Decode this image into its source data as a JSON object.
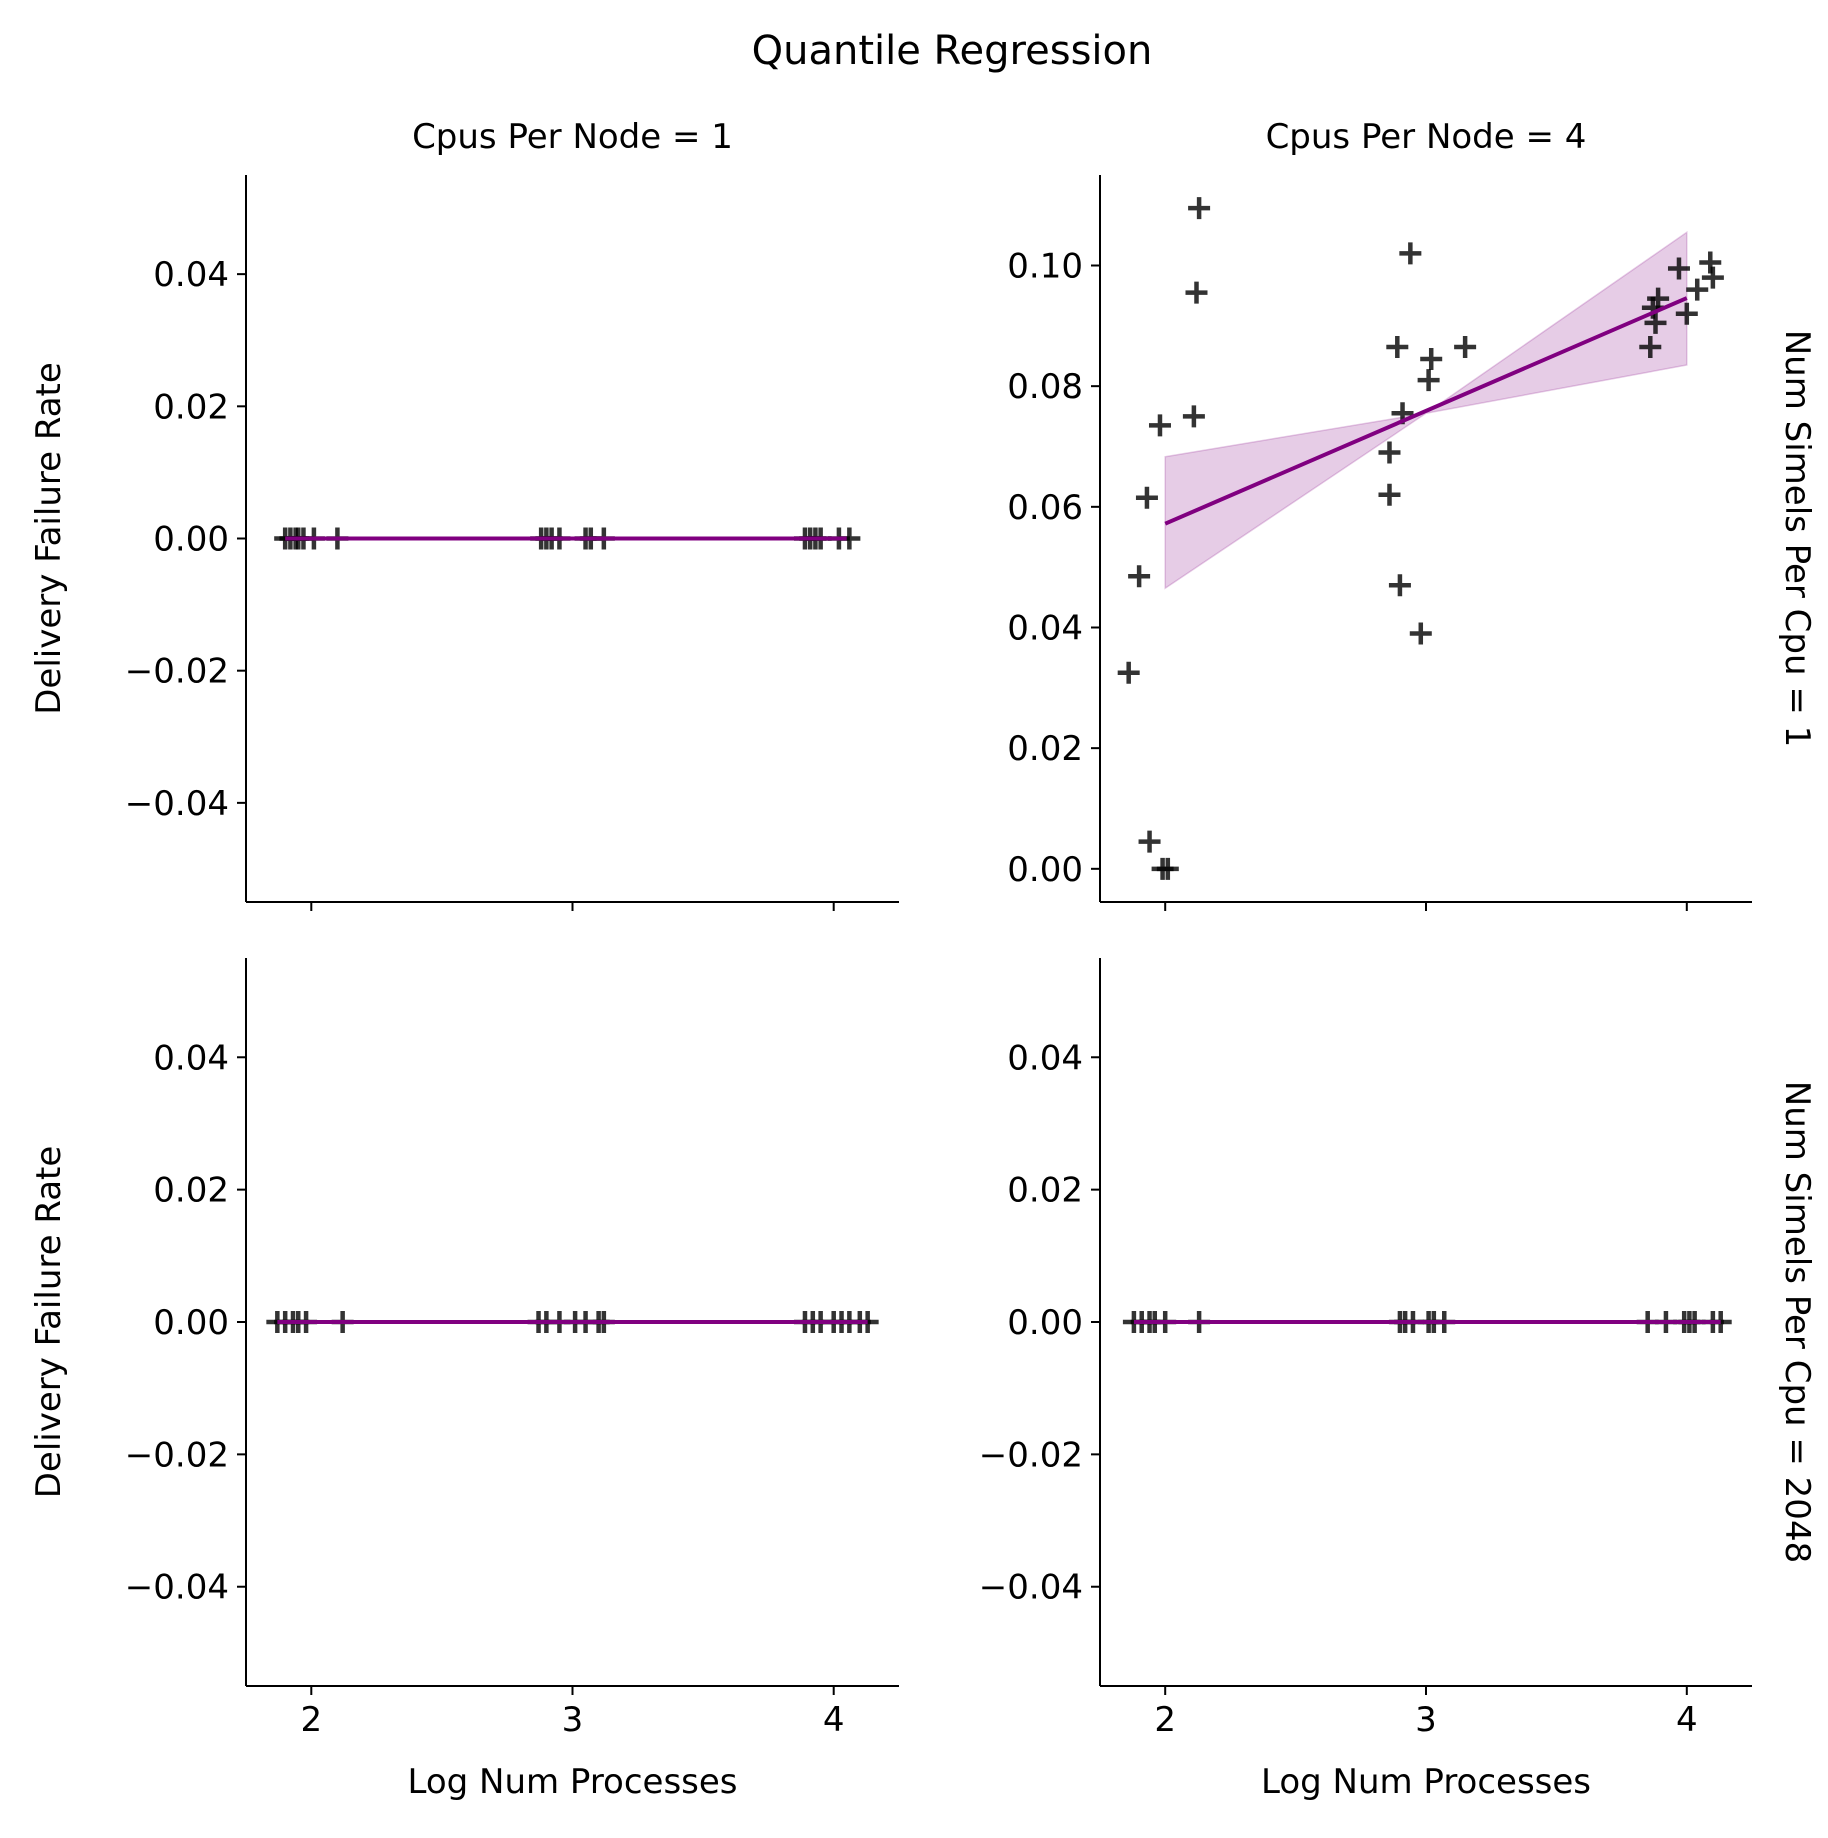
{
  "figure": {
    "title": "Quantile Regression",
    "xlabel": "Log Num Processes",
    "ylabel": "Delivery Failure Rate"
  },
  "colors": {
    "line": "#800080",
    "band": "#800080",
    "marker": "#000000"
  },
  "chart_data": [
    {
      "type": "scatter",
      "col_label": "Cpus Per Node = 1",
      "row_label": "",
      "xlim": [
        1.75,
        4.25
      ],
      "ylim": [
        -0.055,
        0.055
      ],
      "xticks": [
        2,
        3,
        4
      ],
      "yticks": [
        -0.04,
        -0.02,
        0.0,
        0.02,
        0.04
      ],
      "points": [
        [
          1.9,
          0
        ],
        [
          1.92,
          0
        ],
        [
          1.94,
          0
        ],
        [
          1.95,
          0
        ],
        [
          1.97,
          0
        ],
        [
          2.01,
          0
        ],
        [
          2.1,
          0
        ],
        [
          2.88,
          0
        ],
        [
          2.9,
          0
        ],
        [
          2.92,
          0
        ],
        [
          2.95,
          0
        ],
        [
          3.05,
          0
        ],
        [
          3.07,
          0
        ],
        [
          3.12,
          0
        ],
        [
          3.89,
          0
        ],
        [
          3.91,
          0
        ],
        [
          3.93,
          0
        ],
        [
          3.95,
          0
        ],
        [
          4.02,
          0
        ],
        [
          4.06,
          0
        ]
      ],
      "fit": {
        "x": [
          1.9,
          4.05
        ],
        "y": [
          0,
          0
        ]
      }
    },
    {
      "type": "scatter",
      "col_label": "Cpus Per Node = 4",
      "row_label": "Num Simels Per Cpu = 1",
      "xlim": [
        1.75,
        4.25
      ],
      "ylim": [
        -0.0055,
        0.115
      ],
      "xticks": [
        2,
        3,
        4
      ],
      "yticks": [
        0.0,
        0.02,
        0.04,
        0.06,
        0.08,
        0.1
      ],
      "points": [
        [
          2.13,
          0.1095
        ],
        [
          2.12,
          0.0955
        ],
        [
          2.11,
          0.075
        ],
        [
          1.98,
          0.0735
        ],
        [
          1.93,
          0.0615
        ],
        [
          1.9,
          0.0485
        ],
        [
          1.86,
          0.0325
        ],
        [
          1.94,
          0.0045
        ],
        [
          1.99,
          0.0
        ],
        [
          2.01,
          0.0
        ],
        [
          2.94,
          0.102
        ],
        [
          2.89,
          0.0865
        ],
        [
          2.91,
          0.0755
        ],
        [
          2.86,
          0.069
        ],
        [
          2.86,
          0.062
        ],
        [
          2.9,
          0.047
        ],
        [
          2.98,
          0.039
        ],
        [
          3.02,
          0.0845
        ],
        [
          3.01,
          0.081
        ],
        [
          3.15,
          0.0865
        ],
        [
          3.97,
          0.0995
        ],
        [
          4.09,
          0.1005
        ],
        [
          4.1,
          0.098
        ],
        [
          4.04,
          0.096
        ],
        [
          3.89,
          0.0945
        ],
        [
          3.87,
          0.093
        ],
        [
          3.88,
          0.0905
        ],
        [
          3.86,
          0.0865
        ],
        [
          4.0,
          0.092
        ]
      ],
      "fit": {
        "x": [
          2.0,
          4.0
        ],
        "y": [
          0.0572,
          0.0946
        ]
      },
      "band": {
        "x": [
          2.0,
          3.0,
          4.0
        ],
        "lower": [
          0.0465,
          0.0755,
          0.0835
        ],
        "upper": [
          0.0683,
          0.0755,
          0.1055
        ]
      }
    },
    {
      "type": "scatter",
      "col_label": "",
      "row_label": "",
      "xlim": [
        1.75,
        4.25
      ],
      "ylim": [
        -0.055,
        0.055
      ],
      "xticks": [
        2,
        3,
        4
      ],
      "yticks": [
        -0.04,
        -0.02,
        0.0,
        0.02,
        0.04
      ],
      "points": [
        [
          1.87,
          0
        ],
        [
          1.9,
          0
        ],
        [
          1.93,
          0
        ],
        [
          1.95,
          0
        ],
        [
          1.98,
          0
        ],
        [
          2.12,
          0
        ],
        [
          2.87,
          0
        ],
        [
          2.9,
          0
        ],
        [
          2.95,
          0
        ],
        [
          3.01,
          0
        ],
        [
          3.05,
          0
        ],
        [
          3.1,
          0
        ],
        [
          3.12,
          0
        ],
        [
          3.89,
          0
        ],
        [
          3.92,
          0
        ],
        [
          3.95,
          0
        ],
        [
          4.0,
          0
        ],
        [
          4.03,
          0
        ],
        [
          4.06,
          0
        ],
        [
          4.1,
          0
        ],
        [
          4.13,
          0
        ]
      ],
      "fit": {
        "x": [
          1.87,
          4.13
        ],
        "y": [
          0,
          0
        ]
      }
    },
    {
      "type": "scatter",
      "col_label": "",
      "row_label": "Num Simels Per Cpu = 2048",
      "xlim": [
        1.75,
        4.25
      ],
      "ylim": [
        -0.055,
        0.055
      ],
      "xticks": [
        2,
        3,
        4
      ],
      "yticks": [
        -0.04,
        -0.02,
        0.0,
        0.02,
        0.04
      ],
      "points": [
        [
          1.88,
          0
        ],
        [
          1.91,
          0
        ],
        [
          1.94,
          0
        ],
        [
          1.96,
          0
        ],
        [
          2.0,
          0
        ],
        [
          2.13,
          0
        ],
        [
          2.9,
          0
        ],
        [
          2.92,
          0
        ],
        [
          2.95,
          0
        ],
        [
          3.01,
          0
        ],
        [
          3.03,
          0
        ],
        [
          3.07,
          0
        ],
        [
          3.85,
          0
        ],
        [
          3.92,
          0
        ],
        [
          3.99,
          0
        ],
        [
          4.01,
          0
        ],
        [
          4.03,
          0
        ],
        [
          4.1,
          0
        ],
        [
          4.13,
          0
        ]
      ],
      "fit": {
        "x": [
          1.88,
          4.13
        ],
        "y": [
          0,
          0
        ]
      }
    }
  ]
}
